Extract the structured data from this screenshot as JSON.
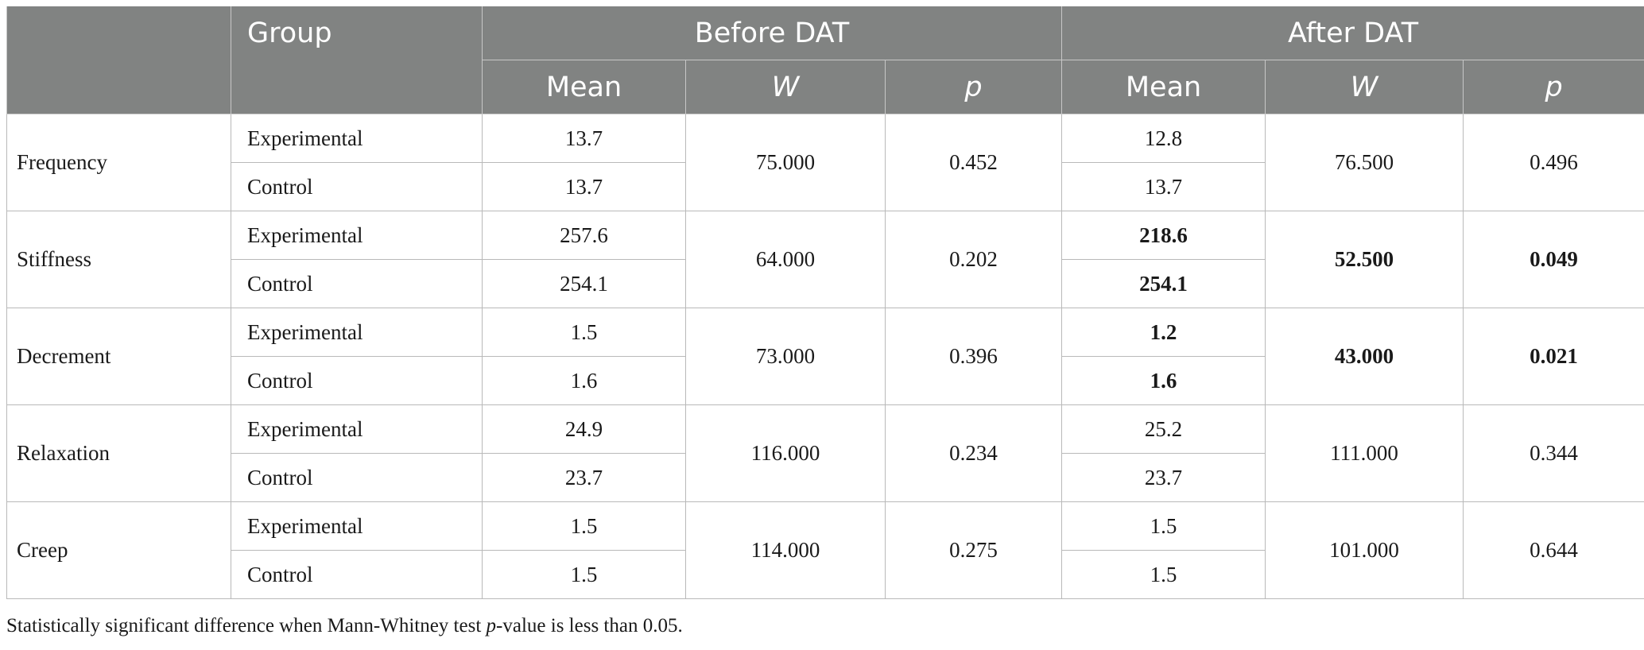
{
  "header": {
    "group": "Group",
    "before": "Before DAT",
    "after": "After DAT",
    "mean": "Mean",
    "w": "W",
    "p": "p"
  },
  "rows": [
    {
      "variable": "Frequency",
      "groups": [
        "Experimental",
        "Control"
      ],
      "before_mean": [
        "13.7",
        "13.7"
      ],
      "before_w": "75.000",
      "before_p": "0.452",
      "after_mean": [
        "12.8",
        "13.7"
      ],
      "after_w": "76.500",
      "after_p": "0.496",
      "significant": false
    },
    {
      "variable": "Stiffness",
      "groups": [
        "Experimental",
        "Control"
      ],
      "before_mean": [
        "257.6",
        "254.1"
      ],
      "before_w": "64.000",
      "before_p": "0.202",
      "after_mean": [
        "218.6",
        "254.1"
      ],
      "after_w": "52.500",
      "after_p": "0.049",
      "significant": true
    },
    {
      "variable": "Decrement",
      "groups": [
        "Experimental",
        "Control"
      ],
      "before_mean": [
        "1.5",
        "1.6"
      ],
      "before_w": "73.000",
      "before_p": "0.396",
      "after_mean": [
        "1.2",
        "1.6"
      ],
      "after_w": "43.000",
      "after_p": "0.021",
      "significant": true
    },
    {
      "variable": "Relaxation",
      "groups": [
        "Experimental",
        "Control"
      ],
      "before_mean": [
        "24.9",
        "23.7"
      ],
      "before_w": "116.000",
      "before_p": "0.234",
      "after_mean": [
        "25.2",
        "23.7"
      ],
      "after_w": "111.000",
      "after_p": "0.344",
      "significant": false
    },
    {
      "variable": "Creep",
      "groups": [
        "Experimental",
        "Control"
      ],
      "before_mean": [
        "1.5",
        "1.5"
      ],
      "before_w": "114.000",
      "before_p": "0.275",
      "after_mean": [
        "1.5",
        "1.5"
      ],
      "after_w": "101.000",
      "after_p": "0.644",
      "significant": false
    }
  ],
  "footnote": {
    "prefix": "Statistically significant difference when Mann-Whitney test ",
    "p": "p",
    "suffix": "-value is less than 0.05."
  }
}
